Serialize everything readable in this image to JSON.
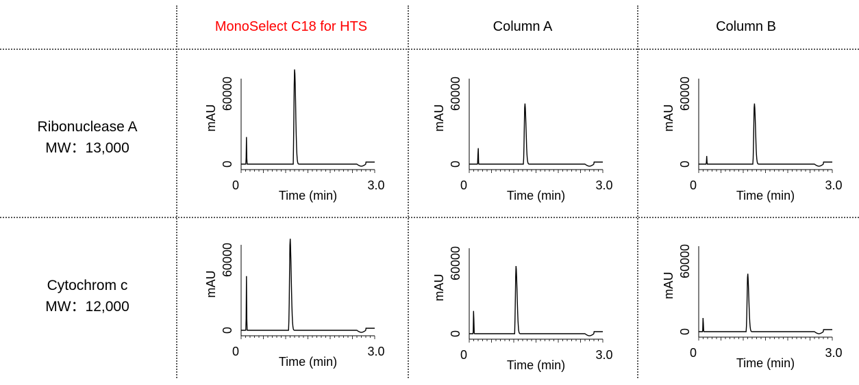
{
  "columns": [
    {
      "label": "MonoSelect C18 for HTS",
      "color": "#ff0000"
    },
    {
      "label": "Column A",
      "color": "#000000"
    },
    {
      "label": "Column B",
      "color": "#000000"
    }
  ],
  "rows": [
    {
      "name": "Ribonuclease A",
      "mw": "MW：13,000"
    },
    {
      "name": "Cytochrom c",
      "mw": "MW：12,000"
    }
  ],
  "chart_data": [
    {
      "type": "line",
      "row": "Ribonuclease A",
      "column": "MonoSelect C18 for HTS",
      "xlabel": "Time (min)",
      "ylabel": "mAU",
      "xlim": [
        0,
        3.0
      ],
      "ylim": [
        0,
        60000
      ],
      "x_tick_labels": [
        "0",
        "3.0"
      ],
      "y_tick_labels": [
        "0",
        "60000"
      ],
      "peak_time": 1.2,
      "peak_height": 70000,
      "spike_time": 0.12,
      "spike_height": 20000
    },
    {
      "type": "line",
      "row": "Ribonuclease A",
      "column": "Column A",
      "xlabel": "Time (min)",
      "ylabel": "mAU",
      "xlim": [
        0,
        3.0
      ],
      "ylim": [
        0,
        60000
      ],
      "x_tick_labels": [
        "0",
        "3.0"
      ],
      "y_tick_labels": [
        "0",
        "60000"
      ],
      "peak_time": 1.25,
      "peak_height": 45000,
      "spike_time": 0.2,
      "spike_height": 14000
    },
    {
      "type": "line",
      "row": "Ribonuclease A",
      "column": "Column B",
      "xlabel": "Time (min)",
      "ylabel": "mAU",
      "xlim": [
        0,
        3.0
      ],
      "ylim": [
        0,
        60000
      ],
      "x_tick_labels": [
        "0",
        "3.0"
      ],
      "y_tick_labels": [
        "0",
        "60000"
      ],
      "peak_time": 1.25,
      "peak_height": 45000,
      "spike_time": 0.18,
      "spike_height": 6000
    },
    {
      "type": "line",
      "row": "Cytochrom c",
      "column": "MonoSelect C18 for HTS",
      "xlabel": "Time (min)",
      "ylabel": "mAU",
      "xlim": [
        0,
        3.0
      ],
      "ylim": [
        0,
        60000
      ],
      "x_tick_labels": [
        "0",
        "3.0"
      ],
      "y_tick_labels": [
        "0",
        "60000"
      ],
      "peak_time": 1.1,
      "peak_height": 68000,
      "spike_time": 0.12,
      "spike_height": 40000
    },
    {
      "type": "line",
      "row": "Cytochrom c",
      "column": "Column A",
      "xlabel": "Time (min)",
      "ylabel": "mAU",
      "xlim": [
        0,
        3.0
      ],
      "ylim": [
        0,
        60000
      ],
      "x_tick_labels": [
        "0",
        "3.0"
      ],
      "y_tick_labels": [
        "0",
        "60000"
      ],
      "peak_time": 1.05,
      "peak_height": 50000,
      "spike_time": 0.1,
      "spike_height": 20000
    },
    {
      "type": "line",
      "row": "Cytochrom c",
      "column": "Column B",
      "xlabel": "Time (min)",
      "ylabel": "mAU",
      "xlim": [
        0,
        3.0
      ],
      "ylim": [
        0,
        60000
      ],
      "x_tick_labels": [
        "0",
        "3.0"
      ],
      "y_tick_labels": [
        "0",
        "60000"
      ],
      "peak_time": 1.1,
      "peak_height": 43000,
      "spike_time": 0.1,
      "spike_height": 12000
    }
  ]
}
